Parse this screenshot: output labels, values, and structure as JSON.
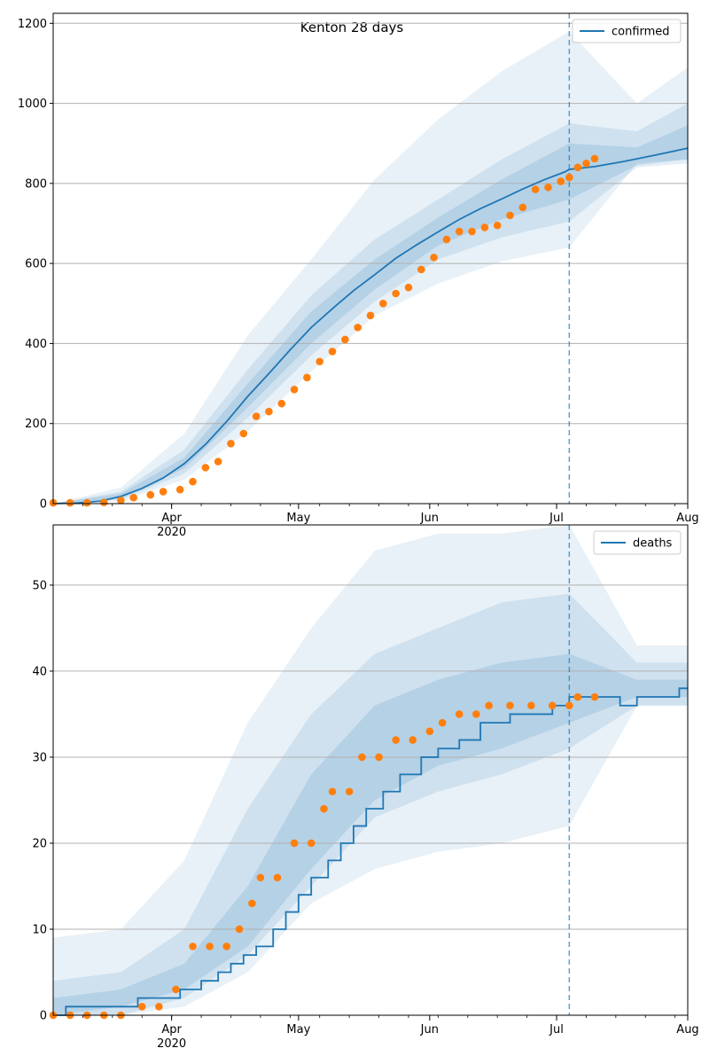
{
  "chart_data": [
    {
      "type": "line",
      "title": "Kenton 28 days",
      "xlabel": "",
      "ylabel": "",
      "xlim": [
        "2020-03-04",
        "2020-08-01"
      ],
      "ylim": [
        0,
        1225
      ],
      "yticks": [
        0,
        200,
        400,
        600,
        800,
        1000,
        1200
      ],
      "xtick_labels": [
        "Apr\n2020",
        "May",
        "Jun",
        "Jul",
        "Aug"
      ],
      "grid": "y",
      "legend": {
        "position": "top-right",
        "entries": [
          "confirmed"
        ]
      },
      "forecast_start": "2020-07-04",
      "colors": {
        "model": "#1f77b4",
        "observed": "#ff7f0e",
        "band": "#1f77b4"
      },
      "series": [
        {
          "name": "confirmed",
          "role": "model-median",
          "points": [
            [
              "2020-03-04",
              0
            ],
            [
              "2020-03-10",
              2
            ],
            [
              "2020-03-15",
              6
            ],
            [
              "2020-03-20",
              18
            ],
            [
              "2020-03-25",
              38
            ],
            [
              "2020-03-30",
              64
            ],
            [
              "2020-04-04",
              100
            ],
            [
              "2020-04-09",
              148
            ],
            [
              "2020-04-14",
              205
            ],
            [
              "2020-04-19",
              268
            ],
            [
              "2020-04-24",
              325
            ],
            [
              "2020-04-29",
              384
            ],
            [
              "2020-05-04",
              440
            ],
            [
              "2020-05-09",
              487
            ],
            [
              "2020-05-14",
              532
            ],
            [
              "2020-05-19",
              572
            ],
            [
              "2020-05-24",
              613
            ],
            [
              "2020-05-29",
              647
            ],
            [
              "2020-06-03",
              679
            ],
            [
              "2020-06-08",
              710
            ],
            [
              "2020-06-13",
              737
            ],
            [
              "2020-06-18",
              761
            ],
            [
              "2020-06-23",
              786
            ],
            [
              "2020-06-28",
              809
            ],
            [
              "2020-07-03",
              829
            ],
            [
              "2020-07-04",
              835
            ],
            [
              "2020-07-10",
              842
            ],
            [
              "2020-07-17",
              855
            ],
            [
              "2020-07-24",
              870
            ],
            [
              "2020-08-01",
              888
            ]
          ]
        },
        {
          "name": "observed confirmed",
          "role": "observed",
          "points": [
            [
              "2020-03-04",
              2
            ],
            [
              "2020-03-08",
              2
            ],
            [
              "2020-03-12",
              2
            ],
            [
              "2020-03-16",
              3
            ],
            [
              "2020-03-20",
              8
            ],
            [
              "2020-03-23",
              15
            ],
            [
              "2020-03-27",
              22
            ],
            [
              "2020-03-30",
              30
            ],
            [
              "2020-04-03",
              35
            ],
            [
              "2020-04-06",
              55
            ],
            [
              "2020-04-09",
              90
            ],
            [
              "2020-04-12",
              105
            ],
            [
              "2020-04-15",
              150
            ],
            [
              "2020-04-18",
              175
            ],
            [
              "2020-04-21",
              218
            ],
            [
              "2020-04-24",
              230
            ],
            [
              "2020-04-27",
              250
            ],
            [
              "2020-04-30",
              285
            ],
            [
              "2020-05-03",
              315
            ],
            [
              "2020-05-06",
              355
            ],
            [
              "2020-05-09",
              380
            ],
            [
              "2020-05-12",
              410
            ],
            [
              "2020-05-15",
              440
            ],
            [
              "2020-05-18",
              470
            ],
            [
              "2020-05-21",
              500
            ],
            [
              "2020-05-24",
              525
            ],
            [
              "2020-05-27",
              540
            ],
            [
              "2020-05-30",
              585
            ],
            [
              "2020-06-02",
              615
            ],
            [
              "2020-06-05",
              660
            ],
            [
              "2020-06-08",
              680
            ],
            [
              "2020-06-11",
              680
            ],
            [
              "2020-06-14",
              690
            ],
            [
              "2020-06-17",
              695
            ],
            [
              "2020-06-20",
              720
            ],
            [
              "2020-06-23",
              740
            ],
            [
              "2020-06-26",
              785
            ],
            [
              "2020-06-29",
              790
            ],
            [
              "2020-07-02",
              805
            ],
            [
              "2020-07-04",
              815
            ],
            [
              "2020-07-06",
              840
            ],
            [
              "2020-07-08",
              850
            ],
            [
              "2020-07-10",
              862
            ]
          ]
        }
      ],
      "bands": [
        {
          "level": "outer",
          "points": [
            [
              "2020-03-04",
              0,
              0
            ],
            [
              "2020-03-20",
              6,
              40
            ],
            [
              "2020-04-04",
              60,
              175
            ],
            [
              "2020-04-19",
              180,
              420
            ],
            [
              "2020-05-04",
              330,
              610
            ],
            [
              "2020-05-19",
              470,
              810
            ],
            [
              "2020-06-03",
              550,
              960
            ],
            [
              "2020-06-18",
              605,
              1080
            ],
            [
              "2020-07-04",
              640,
              1180
            ],
            [
              "2020-07-20",
              850,
              1000
            ],
            [
              "2020-08-01",
              860,
              1090
            ]
          ]
        },
        {
          "level": "middle",
          "points": [
            [
              "2020-03-04",
              0,
              0
            ],
            [
              "2020-03-20",
              10,
              30
            ],
            [
              "2020-04-04",
              75,
              135
            ],
            [
              "2020-04-19",
              215,
              335
            ],
            [
              "2020-05-04",
              370,
              520
            ],
            [
              "2020-05-19",
              505,
              660
            ],
            [
              "2020-06-03",
              610,
              760
            ],
            [
              "2020-06-18",
              665,
              860
            ],
            [
              "2020-07-04",
              705,
              950
            ],
            [
              "2020-07-20",
              840,
              930
            ],
            [
              "2020-08-01",
              850,
              1000
            ]
          ]
        },
        {
          "level": "inner",
          "points": [
            [
              "2020-03-04",
              0,
              0
            ],
            [
              "2020-03-20",
              13,
              25
            ],
            [
              "2020-04-04",
              88,
              115
            ],
            [
              "2020-04-19",
              240,
              300
            ],
            [
              "2020-05-04",
              400,
              480
            ],
            [
              "2020-05-19",
              535,
              610
            ],
            [
              "2020-06-03",
              645,
              715
            ],
            [
              "2020-06-18",
              710,
              810
            ],
            [
              "2020-07-04",
              760,
              900
            ],
            [
              "2020-07-20",
              845,
              890
            ],
            [
              "2020-08-01",
              860,
              945
            ]
          ]
        }
      ]
    },
    {
      "type": "line",
      "title": "",
      "xlabel": "",
      "ylabel": "",
      "xlim": [
        "2020-03-04",
        "2020-08-01"
      ],
      "ylim": [
        0,
        57
      ],
      "yticks": [
        0,
        10,
        20,
        30,
        40,
        50
      ],
      "xtick_labels": [
        "Apr\n2020",
        "May",
        "Jun",
        "Jul",
        "Aug"
      ],
      "grid": "y",
      "legend": {
        "position": "top-right",
        "entries": [
          "deaths"
        ]
      },
      "forecast_start": "2020-07-04",
      "colors": {
        "model": "#1f77b4",
        "observed": "#ff7f0e",
        "band": "#1f77b4"
      },
      "series": [
        {
          "name": "deaths",
          "role": "model-median-step",
          "points": [
            [
              "2020-03-04",
              0
            ],
            [
              "2020-03-07",
              1
            ],
            [
              "2020-03-24",
              2
            ],
            [
              "2020-04-03",
              3
            ],
            [
              "2020-04-08",
              4
            ],
            [
              "2020-04-12",
              5
            ],
            [
              "2020-04-15",
              6
            ],
            [
              "2020-04-18",
              7
            ],
            [
              "2020-04-21",
              8
            ],
            [
              "2020-04-25",
              10
            ],
            [
              "2020-04-28",
              12
            ],
            [
              "2020-05-01",
              14
            ],
            [
              "2020-05-04",
              16
            ],
            [
              "2020-05-08",
              18
            ],
            [
              "2020-05-11",
              20
            ],
            [
              "2020-05-14",
              22
            ],
            [
              "2020-05-17",
              24
            ],
            [
              "2020-05-21",
              26
            ],
            [
              "2020-05-25",
              28
            ],
            [
              "2020-05-30",
              30
            ],
            [
              "2020-06-03",
              31
            ],
            [
              "2020-06-08",
              32
            ],
            [
              "2020-06-13",
              34
            ],
            [
              "2020-06-20",
              35
            ],
            [
              "2020-06-30",
              36
            ],
            [
              "2020-07-04",
              37
            ],
            [
              "2020-07-16",
              36
            ],
            [
              "2020-07-20",
              37
            ],
            [
              "2020-07-30",
              38
            ],
            [
              "2020-08-01",
              38
            ]
          ]
        },
        {
          "name": "observed deaths",
          "role": "observed",
          "points": [
            [
              "2020-03-04",
              0
            ],
            [
              "2020-03-08",
              0
            ],
            [
              "2020-03-12",
              0
            ],
            [
              "2020-03-16",
              0
            ],
            [
              "2020-03-20",
              0
            ],
            [
              "2020-03-25",
              1
            ],
            [
              "2020-03-29",
              1
            ],
            [
              "2020-04-02",
              3
            ],
            [
              "2020-04-06",
              8
            ],
            [
              "2020-04-10",
              8
            ],
            [
              "2020-04-14",
              8
            ],
            [
              "2020-04-17",
              10
            ],
            [
              "2020-04-20",
              13
            ],
            [
              "2020-04-22",
              16
            ],
            [
              "2020-04-26",
              16
            ],
            [
              "2020-04-30",
              20
            ],
            [
              "2020-05-04",
              20
            ],
            [
              "2020-05-07",
              24
            ],
            [
              "2020-05-09",
              26
            ],
            [
              "2020-05-13",
              26
            ],
            [
              "2020-05-16",
              30
            ],
            [
              "2020-05-20",
              30
            ],
            [
              "2020-05-24",
              32
            ],
            [
              "2020-05-28",
              32
            ],
            [
              "2020-06-01",
              33
            ],
            [
              "2020-06-04",
              34
            ],
            [
              "2020-06-08",
              35
            ],
            [
              "2020-06-12",
              35
            ],
            [
              "2020-06-15",
              36
            ],
            [
              "2020-06-20",
              36
            ],
            [
              "2020-06-25",
              36
            ],
            [
              "2020-06-30",
              36
            ],
            [
              "2020-07-04",
              36
            ],
            [
              "2020-07-06",
              37
            ],
            [
              "2020-07-10",
              37
            ]
          ]
        }
      ],
      "bands": [
        {
          "level": "outer",
          "points": [
            [
              "2020-03-04",
              0,
              9
            ],
            [
              "2020-03-20",
              0,
              10
            ],
            [
              "2020-04-04",
              1,
              18
            ],
            [
              "2020-04-19",
              5,
              34
            ],
            [
              "2020-05-04",
              13,
              45
            ],
            [
              "2020-05-19",
              17,
              54
            ],
            [
              "2020-06-03",
              19,
              56
            ],
            [
              "2020-06-18",
              20,
              56
            ],
            [
              "2020-07-04",
              22,
              57
            ],
            [
              "2020-07-20",
              36,
              43
            ],
            [
              "2020-08-01",
              36,
              43
            ]
          ]
        },
        {
          "level": "middle",
          "points": [
            [
              "2020-03-04",
              0,
              4
            ],
            [
              "2020-03-20",
              0,
              5
            ],
            [
              "2020-04-04",
              2,
              10
            ],
            [
              "2020-04-19",
              7,
              24
            ],
            [
              "2020-05-04",
              15,
              35
            ],
            [
              "2020-05-19",
              23,
              42
            ],
            [
              "2020-06-03",
              26,
              45
            ],
            [
              "2020-06-18",
              28,
              48
            ],
            [
              "2020-07-04",
              31,
              49
            ],
            [
              "2020-07-20",
              36,
              41
            ],
            [
              "2020-08-01",
              36,
              41
            ]
          ]
        },
        {
          "level": "inner",
          "points": [
            [
              "2020-03-04",
              0,
              2
            ],
            [
              "2020-03-20",
              1,
              3
            ],
            [
              "2020-04-04",
              3,
              6
            ],
            [
              "2020-04-19",
              8,
              15
            ],
            [
              "2020-05-04",
              17,
              28
            ],
            [
              "2020-05-19",
              25,
              36
            ],
            [
              "2020-06-03",
              29,
              39
            ],
            [
              "2020-06-18",
              31,
              41
            ],
            [
              "2020-07-04",
              34,
              42
            ],
            [
              "2020-07-20",
              37,
              39
            ],
            [
              "2020-08-01",
              37,
              39
            ]
          ]
        }
      ]
    }
  ]
}
